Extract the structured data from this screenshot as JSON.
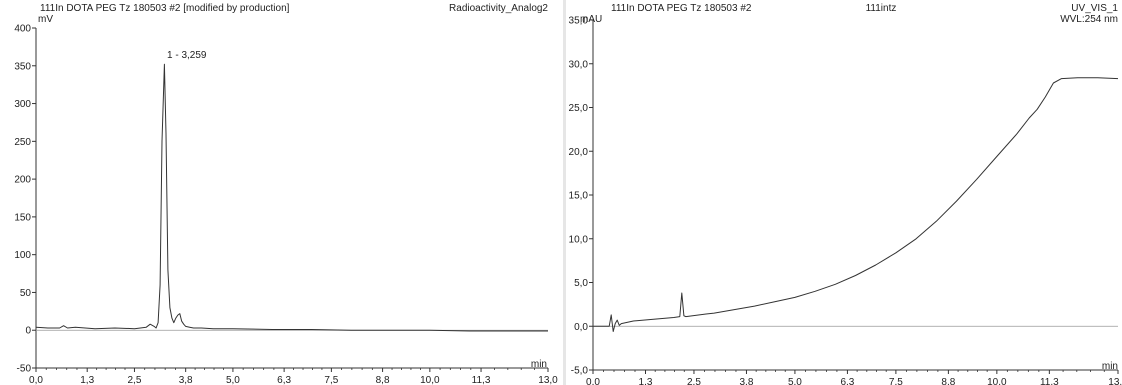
{
  "charts": [
    {
      "header": {
        "title": "111In DOTA PEG Tz 180503 #2 [modified by production]",
        "center": "",
        "right": "Radioactivity_Analog2",
        "right2": ""
      },
      "y_unit": "mV",
      "x_unit": "min",
      "peak_label": "1 - 3,259"
    },
    {
      "header": {
        "title": "111In DOTA PEG Tz 180503 #2",
        "center": "111intz",
        "right": "UV_VIS_1",
        "right2": "WVL:254 nm"
      },
      "y_unit": "mAU",
      "x_unit": "min",
      "peak_label": ""
    }
  ],
  "chart_data": [
    {
      "type": "line",
      "xlim": [
        0,
        13
      ],
      "ylim": [
        -50,
        400
      ],
      "x_ticks": [
        "0,0",
        "1,3",
        "2,5",
        "3,8",
        "5,0",
        "6,3",
        "7,5",
        "8,8",
        "10,0",
        "11,3",
        "13,0"
      ],
      "y_ticks": [
        "-50",
        "0",
        "50",
        "100",
        "150",
        "200",
        "250",
        "300",
        "350",
        "400"
      ],
      "x_tick_values": [
        0,
        1.3,
        2.5,
        3.8,
        5.0,
        6.3,
        7.5,
        8.8,
        10.0,
        11.3,
        13.0
      ],
      "y_tick_values": [
        -50,
        0,
        50,
        100,
        150,
        200,
        250,
        300,
        350,
        400
      ],
      "series": [
        {
          "color": "#333333",
          "x": [
            0,
            0.3,
            0.6,
            0.7,
            0.8,
            1.0,
            1.5,
            2.0,
            2.5,
            2.8,
            2.9,
            3.0,
            3.05,
            3.1,
            3.15,
            3.2,
            3.259,
            3.3,
            3.35,
            3.4,
            3.45,
            3.5,
            3.55,
            3.6,
            3.65,
            3.7,
            3.75,
            3.8,
            3.9,
            4.0,
            4.2,
            4.5,
            5.0,
            6.0,
            7.0,
            8.0,
            9.0,
            10.0,
            11.0,
            12.0,
            13.0
          ],
          "y": [
            4,
            3,
            3,
            6,
            3,
            4,
            2,
            3,
            2,
            4,
            8,
            5,
            3,
            10,
            60,
            250,
            352,
            260,
            80,
            30,
            16,
            10,
            16,
            20,
            22,
            12,
            8,
            5,
            4,
            3,
            3,
            2,
            2,
            1,
            1,
            0,
            0,
            0,
            -1,
            -1,
            -1
          ]
        }
      ]
    },
    {
      "type": "line",
      "xlim": [
        0,
        13
      ],
      "ylim": [
        -5,
        35
      ],
      "x_ticks": [
        "0,0",
        "1,3",
        "2,5",
        "3,8",
        "5,0",
        "6,3",
        "7,5",
        "8,8",
        "10,0",
        "11,3",
        "13,0"
      ],
      "y_ticks": [
        "-5,0",
        "0,0",
        "5,0",
        "10,0",
        "15,0",
        "20,0",
        "25,0",
        "30,0",
        "35,0"
      ],
      "x_tick_values": [
        0,
        1.3,
        2.5,
        3.8,
        5.0,
        6.3,
        7.5,
        8.8,
        10.0,
        11.3,
        13.0
      ],
      "y_tick_values": [
        -5,
        0,
        5,
        10,
        15,
        20,
        25,
        30,
        35
      ],
      "series": [
        {
          "color": "#333333",
          "x": [
            0,
            0.4,
            0.45,
            0.5,
            0.55,
            0.6,
            0.65,
            0.7,
            1.0,
            1.5,
            2.0,
            2.15,
            2.2,
            2.25,
            2.3,
            2.8,
            3.0,
            3.5,
            4.0,
            4.5,
            5.0,
            5.5,
            6.0,
            6.5,
            7.0,
            7.5,
            8.0,
            8.5,
            9.0,
            9.5,
            10.0,
            10.5,
            10.8,
            11.0,
            11.2,
            11.4,
            11.6,
            12.0,
            12.5,
            13.0
          ],
          "y": [
            0.0,
            0.0,
            1.3,
            -0.6,
            0.3,
            0.7,
            0.1,
            0.3,
            0.6,
            0.8,
            1.0,
            1.1,
            3.8,
            1.2,
            1.1,
            1.4,
            1.5,
            1.9,
            2.3,
            2.8,
            3.3,
            4.0,
            4.8,
            5.8,
            7.0,
            8.4,
            10.0,
            12.0,
            14.3,
            16.8,
            19.4,
            22.0,
            23.8,
            24.8,
            26.2,
            27.8,
            28.3,
            28.4,
            28.4,
            28.3
          ]
        }
      ]
    }
  ]
}
